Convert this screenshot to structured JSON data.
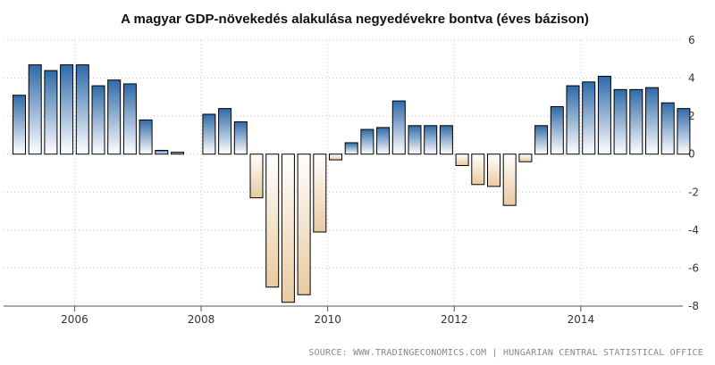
{
  "colors": {
    "bar_stroke": "#000000",
    "positive_top": "#2f6aa8",
    "positive_bottom": "#ffffff",
    "negative_top": "#ffffff",
    "negative_bottom": "#e8caa0",
    "grid": "#c8c8c8",
    "axis": "#555555"
  },
  "source": "SOURCE: WWW.TRADINGECONOMICS.COM | HUNGARIAN CENTRAL STATISTICAL OFFICE",
  "chart_data": {
    "type": "bar",
    "title": "A magyar GDP-növekedés alakulása negyedévekre bontva (éves bázison)",
    "xlabel": "",
    "ylabel": "",
    "ylim": [
      -8,
      6
    ],
    "y_ticks": [
      6,
      4,
      2,
      0,
      -2,
      -4,
      -6,
      -8
    ],
    "y_axis_side": "right",
    "grid": true,
    "legend": "none",
    "x_tick_labels": [
      "2006",
      "2008",
      "2010",
      "2012",
      "2014"
    ],
    "categories": [
      "2005 Q1",
      "2005 Q2",
      "2005 Q3",
      "2005 Q4",
      "2006 Q1",
      "2006 Q2",
      "2006 Q3",
      "2006 Q4",
      "2007 Q1",
      "2007 Q2",
      "2007 Q3",
      "2007 Q4",
      "2008 Q1",
      "2008 Q2",
      "2008 Q3",
      "2008 Q4",
      "2009 Q1",
      "2009 Q2",
      "2009 Q3",
      "2009 Q4",
      "2010 Q1",
      "2010 Q2",
      "2010 Q3",
      "2010 Q4",
      "2011 Q1",
      "2011 Q2",
      "2011 Q3",
      "2011 Q4",
      "2012 Q1",
      "2012 Q2",
      "2012 Q3",
      "2012 Q4",
      "2013 Q1",
      "2013 Q2",
      "2013 Q3",
      "2013 Q4",
      "2014 Q1",
      "2014 Q2",
      "2014 Q3",
      "2014 Q4",
      "2015 Q1",
      "2015 Q2",
      "2015 Q3",
      "2015 Q4"
    ],
    "values": [
      3.1,
      4.7,
      4.4,
      4.7,
      4.7,
      3.6,
      3.9,
      3.7,
      1.8,
      0.2,
      0.1,
      null,
      2.1,
      2.4,
      1.7,
      -2.3,
      -7.0,
      -7.8,
      -7.4,
      -4.1,
      -0.3,
      0.6,
      1.3,
      1.4,
      2.8,
      1.5,
      1.5,
      1.5,
      -0.6,
      -1.6,
      -1.7,
      -2.7,
      -0.4,
      1.5,
      2.5,
      3.6,
      3.8,
      4.1,
      3.4,
      3.4,
      3.5,
      2.7,
      2.4,
      null
    ]
  }
}
